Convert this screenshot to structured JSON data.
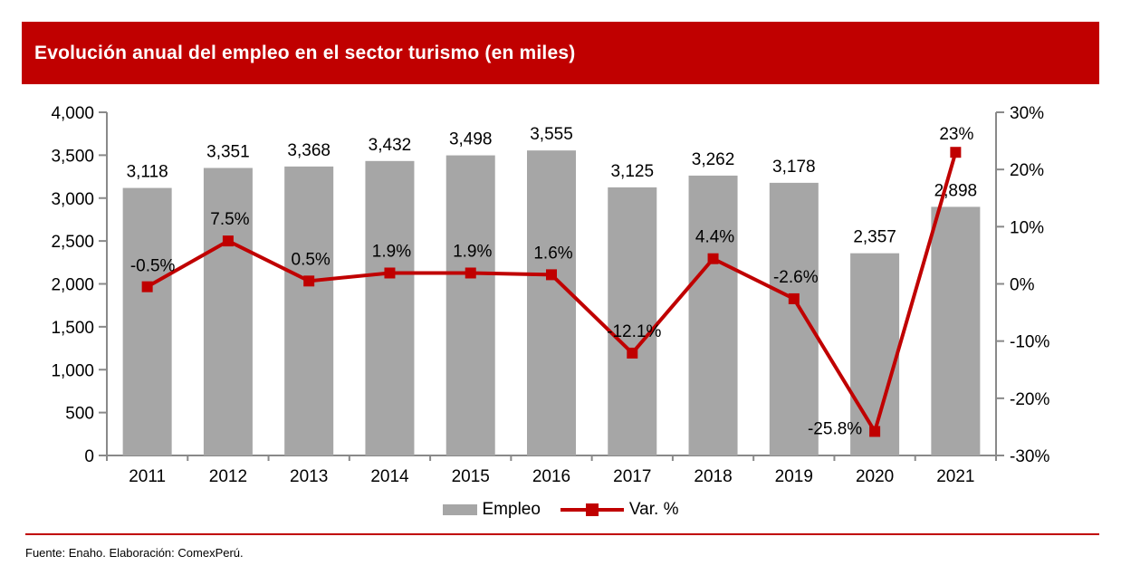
{
  "header": {
    "title": "Evolución anual del empleo en el sector turismo (en miles)",
    "bg_color": "#C00000",
    "text_color": "#FFFFFF"
  },
  "chart_data": {
    "type": "bar",
    "subtype": "combo bar + line, dual y-axes",
    "title": "Evolución anual del empleo en el sector turismo (en miles)",
    "categories": [
      "2011",
      "2012",
      "2013",
      "2014",
      "2015",
      "2016",
      "2017",
      "2018",
      "2019",
      "2020",
      "2021"
    ],
    "series": [
      {
        "name": "Empleo",
        "type": "bar",
        "axis": "left",
        "color": "#A6A6A6",
        "values": [
          3118,
          3351,
          3368,
          3432,
          3498,
          3555,
          3125,
          3262,
          3178,
          2357,
          2898
        ],
        "labels": [
          "3,118",
          "3,351",
          "3,368",
          "3,432",
          "3,498",
          "3,555",
          "3,125",
          "3,262",
          "3,178",
          "2,357",
          "2,898"
        ]
      },
      {
        "name": "Var. %",
        "type": "line",
        "axis": "right",
        "color": "#C00000",
        "marker": "square",
        "values": [
          -0.5,
          7.5,
          0.5,
          1.9,
          1.9,
          1.6,
          -12.1,
          4.4,
          -2.6,
          -25.8,
          23
        ],
        "labels": [
          "-0.5%",
          "7.5%",
          "0.5%",
          "1.9%",
          "1.9%",
          "1.6%",
          "-12.1%",
          "4.4%",
          "-2.6%",
          "-25.8%",
          "23%"
        ],
        "label_offsets": {
          "default": [
            2,
            -25
          ],
          "overrides": {
            "0": [
              6,
              -24
            ],
            "9": [
              -44,
              -4
            ],
            "10": [
              1,
              -21
            ]
          }
        }
      }
    ],
    "left_axis": {
      "min": 0,
      "max": 4000,
      "step": 500,
      "ticks": [
        "0",
        "500",
        "1,000",
        "1,500",
        "2,000",
        "2,500",
        "3,000",
        "3,500",
        "4,000"
      ]
    },
    "right_axis": {
      "min": -30,
      "max": 30,
      "step": 10,
      "ticks": [
        "-30%",
        "-20%",
        "-10%",
        "0%",
        "10%",
        "20%",
        "30%"
      ]
    },
    "grid": false,
    "legend_position": "bottom",
    "axis_color": "#898989",
    "text_color": "#000000"
  },
  "legend": {
    "items": [
      {
        "label": "Empleo",
        "swatch": "bar",
        "color": "#A6A6A6"
      },
      {
        "label": "Var. %",
        "swatch": "line-marker",
        "color": "#C00000"
      }
    ]
  },
  "footer": {
    "text": "Fuente: Enaho. Elaboración: ComexPerú.",
    "divider_color": "#C00000"
  }
}
